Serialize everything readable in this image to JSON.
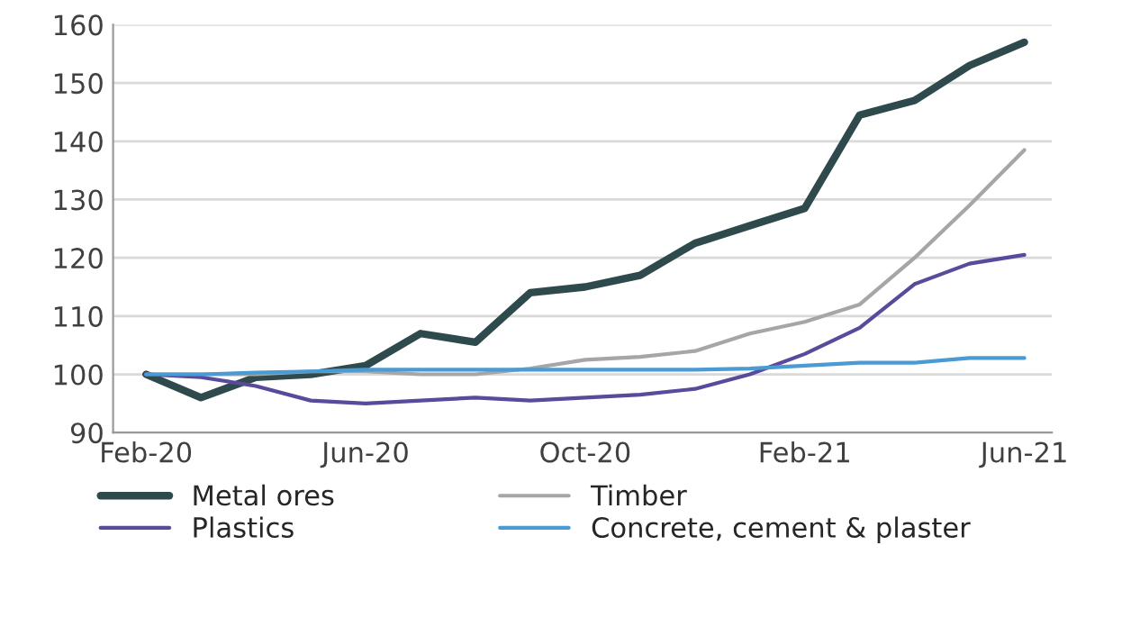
{
  "chart_data": {
    "type": "line",
    "categories": [
      "Feb-20",
      null,
      null,
      null,
      "Jun-20",
      null,
      null,
      null,
      "Oct-20",
      null,
      null,
      null,
      "Feb-21",
      null,
      null,
      null,
      "Jun-21"
    ],
    "series": [
      {
        "name": "Metal ores",
        "color": "#2f4a4c",
        "values": [
          100,
          96,
          99.5,
          100,
          101.5,
          107,
          105.5,
          114,
          115,
          117,
          122.5,
          125.5,
          128.5,
          144.5,
          147,
          153,
          157
        ]
      },
      {
        "name": "Timber",
        "color": "#a6a6a6",
        "values": [
          100,
          100,
          100,
          100.5,
          100.5,
          100,
          100,
          101,
          102.5,
          103,
          104,
          107,
          109,
          112,
          120,
          129,
          138.5
        ]
      },
      {
        "name": "Plastics",
        "color": "#5a4a9c",
        "values": [
          100,
          99.5,
          98,
          95.5,
          95,
          95.5,
          96,
          95.5,
          96,
          96.5,
          97.5,
          100,
          103.5,
          108,
          115.5,
          119,
          120.5
        ]
      },
      {
        "name": "Concrete, cement & plaster",
        "color": "#4a9ad4",
        "values": [
          100,
          100,
          100.3,
          100.5,
          100.8,
          100.8,
          100.8,
          100.8,
          100.8,
          100.8,
          100.8,
          101,
          101.5,
          102,
          102,
          102.8,
          102.8
        ]
      }
    ],
    "ylim": [
      90,
      160
    ],
    "yticks": [
      90,
      100,
      110,
      120,
      130,
      140,
      150,
      160
    ],
    "grid": "y",
    "legend": "bottom",
    "marker": "none",
    "line_style": "solid"
  }
}
